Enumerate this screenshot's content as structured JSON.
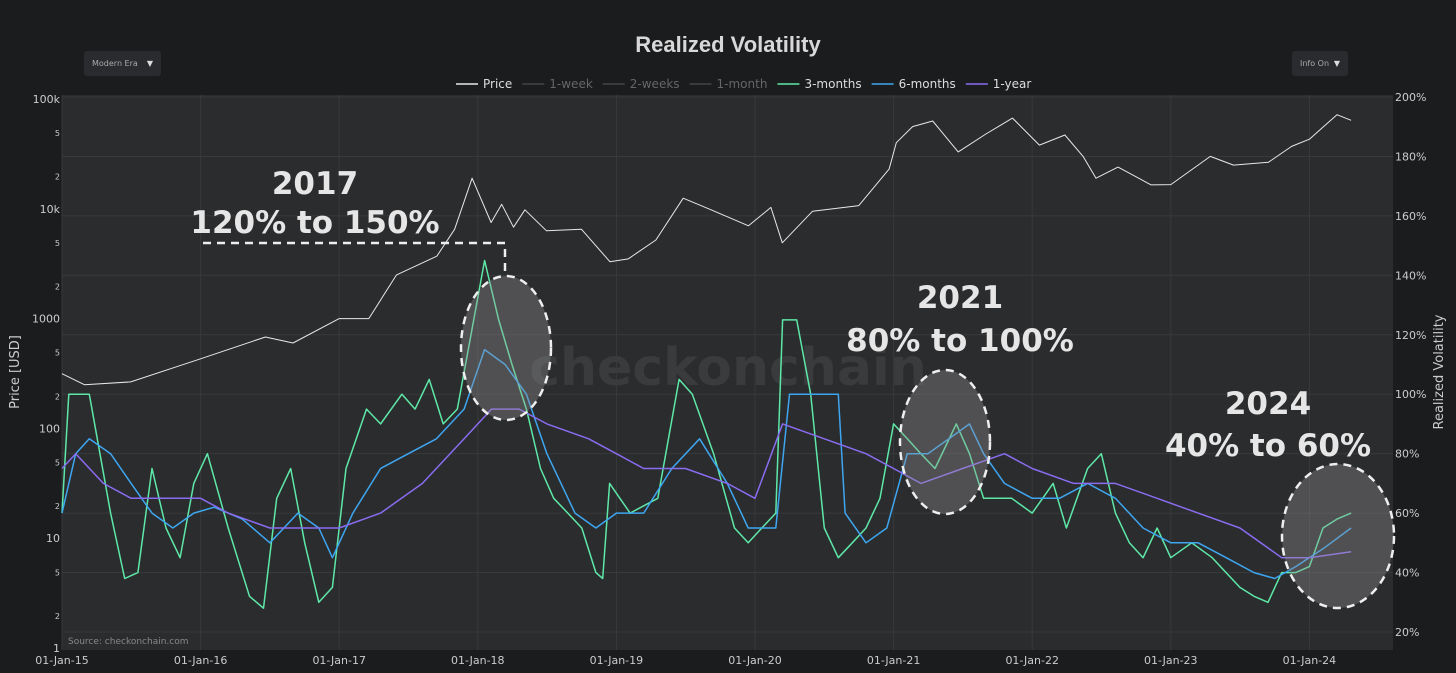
{
  "controls": {
    "era_select": "Modern Era",
    "info_select": "Info On",
    "arrow_glyph": "▼"
  },
  "chart_data": {
    "type": "line",
    "title": "Realized Volatility",
    "xlabel": "",
    "ylabel_left": "Price [USD]",
    "ylabel_right": "Realized Volatility",
    "y_left_scale": "log",
    "y_left_range": [
      1,
      100000
    ],
    "y_left_ticks": [
      "1",
      "2",
      "5",
      "10",
      "2",
      "5",
      "100",
      "2",
      "5",
      "1000",
      "2",
      "5",
      "10k",
      "2",
      "5",
      "100k"
    ],
    "y_right_range": [
      20,
      200
    ],
    "y_right_ticks": [
      "20%",
      "40%",
      "60%",
      "80%",
      "100%",
      "120%",
      "140%",
      "160%",
      "180%",
      "200%"
    ],
    "x_range": [
      "2015-01-01",
      "2024-06-01"
    ],
    "x_ticks": [
      "01-Jan-15",
      "01-Jan-16",
      "01-Jan-17",
      "01-Jan-18",
      "01-Jan-19",
      "01-Jan-20",
      "01-Jan-21",
      "01-Jan-22",
      "01-Jan-23",
      "01-Jan-24"
    ],
    "grid": true,
    "legend_position": "top",
    "legend": [
      {
        "name": "Price",
        "color": "#e8e8e8",
        "visible": true
      },
      {
        "name": "1-week",
        "color": "#555",
        "visible": false
      },
      {
        "name": "2-weeks",
        "color": "#555",
        "visible": false
      },
      {
        "name": "1-month",
        "color": "#555",
        "visible": false
      },
      {
        "name": "3-months",
        "color": "#5ee8a8",
        "visible": true
      },
      {
        "name": "6-months",
        "color": "#3ea6f0",
        "visible": true
      },
      {
        "name": "1-year",
        "color": "#8a6cf0",
        "visible": true
      }
    ],
    "series": [
      {
        "name": "Price",
        "axis": "left",
        "color": "#e8e8e8",
        "points": [
          [
            "2015-01-01",
            315
          ],
          [
            "2015-03-01",
            250
          ],
          [
            "2015-07-01",
            265
          ],
          [
            "2015-11-15",
            380
          ],
          [
            "2016-01-01",
            430
          ],
          [
            "2016-06-20",
            680
          ],
          [
            "2016-09-01",
            600
          ],
          [
            "2017-01-01",
            1000
          ],
          [
            "2017-03-20",
            1000
          ],
          [
            "2017-06-01",
            2500
          ],
          [
            "2017-09-15",
            3700
          ],
          [
            "2017-11-01",
            6500
          ],
          [
            "2017-12-17",
            19000
          ],
          [
            "2018-02-05",
            7500
          ],
          [
            "2018-03-05",
            11000
          ],
          [
            "2018-04-05",
            6800
          ],
          [
            "2018-05-05",
            9800
          ],
          [
            "2018-07-01",
            6300
          ],
          [
            "2018-10-01",
            6500
          ],
          [
            "2018-12-15",
            3300
          ],
          [
            "2019-02-01",
            3500
          ],
          [
            "2019-04-15",
            5200
          ],
          [
            "2019-06-26",
            12500
          ],
          [
            "2019-09-01",
            10000
          ],
          [
            "2019-12-15",
            7000
          ],
          [
            "2020-02-12",
            10300
          ],
          [
            "2020-03-13",
            4900
          ],
          [
            "2020-06-01",
            9500
          ],
          [
            "2020-10-01",
            10700
          ],
          [
            "2020-12-20",
            23000
          ],
          [
            "2021-01-08",
            40000
          ],
          [
            "2021-02-20",
            56000
          ],
          [
            "2021-04-14",
            63000
          ],
          [
            "2021-06-20",
            33000
          ],
          [
            "2021-09-01",
            48000
          ],
          [
            "2021-11-10",
            67000
          ],
          [
            "2022-01-20",
            38000
          ],
          [
            "2022-03-28",
            47000
          ],
          [
            "2022-05-15",
            30000
          ],
          [
            "2022-06-18",
            19000
          ],
          [
            "2022-08-15",
            24000
          ],
          [
            "2022-11-10",
            16500
          ],
          [
            "2023-01-01",
            16600
          ],
          [
            "2023-04-15",
            30000
          ],
          [
            "2023-06-15",
            25000
          ],
          [
            "2023-09-15",
            26500
          ],
          [
            "2023-11-15",
            37000
          ],
          [
            "2024-01-01",
            43000
          ],
          [
            "2024-03-14",
            72000
          ],
          [
            "2024-04-20",
            64000
          ]
        ]
      },
      {
        "name": "3-months",
        "axis": "right",
        "color": "#5ee8a8",
        "points": [
          [
            "2015-01-01",
            60
          ],
          [
            "2015-01-19",
            100
          ],
          [
            "2015-03-14",
            100
          ],
          [
            "2015-05-09",
            60
          ],
          [
            "2015-06-15",
            38
          ],
          [
            "2015-07-20",
            40
          ],
          [
            "2015-08-26",
            75
          ],
          [
            "2015-10-02",
            55
          ],
          [
            "2015-11-08",
            45
          ],
          [
            "2015-12-14",
            70
          ],
          [
            "2016-01-19",
            80
          ],
          [
            "2016-03-14",
            55
          ],
          [
            "2016-05-09",
            32
          ],
          [
            "2016-06-15",
            28
          ],
          [
            "2016-07-20",
            65
          ],
          [
            "2016-08-26",
            75
          ],
          [
            "2016-10-02",
            50
          ],
          [
            "2016-11-08",
            30
          ],
          [
            "2016-12-14",
            35
          ],
          [
            "2017-01-19",
            75
          ],
          [
            "2017-03-14",
            95
          ],
          [
            "2017-04-20",
            90
          ],
          [
            "2017-06-15",
            100
          ],
          [
            "2017-07-20",
            95
          ],
          [
            "2017-08-26",
            105
          ],
          [
            "2017-10-02",
            90
          ],
          [
            "2017-11-08",
            95
          ],
          [
            "2017-12-14",
            120
          ],
          [
            "2018-01-19",
            145
          ],
          [
            "2018-02-25",
            125
          ],
          [
            "2018-04-01",
            110
          ],
          [
            "2018-05-09",
            95
          ],
          [
            "2018-06-15",
            75
          ],
          [
            "2018-07-20",
            65
          ],
          [
            "2018-08-26",
            60
          ],
          [
            "2018-10-02",
            55
          ],
          [
            "2018-11-08",
            40
          ],
          [
            "2018-11-26",
            38
          ],
          [
            "2018-12-14",
            70
          ],
          [
            "2019-02-06",
            60
          ],
          [
            "2019-04-20",
            65
          ],
          [
            "2019-06-15",
            105
          ],
          [
            "2019-07-20",
            100
          ],
          [
            "2019-09-14",
            80
          ],
          [
            "2019-11-08",
            55
          ],
          [
            "2019-12-14",
            50
          ],
          [
            "2020-01-19",
            55
          ],
          [
            "2020-02-25",
            60
          ],
          [
            "2020-03-14",
            125
          ],
          [
            "2020-04-20",
            125
          ],
          [
            "2020-05-27",
            100
          ],
          [
            "2020-07-02",
            55
          ],
          [
            "2020-08-08",
            45
          ],
          [
            "2020-09-14",
            50
          ],
          [
            "2020-10-20",
            55
          ],
          [
            "2020-11-26",
            65
          ],
          [
            "2021-01-01",
            90
          ],
          [
            "2021-02-06",
            85
          ],
          [
            "2021-03-14",
            80
          ],
          [
            "2021-04-20",
            75
          ],
          [
            "2021-06-15",
            90
          ],
          [
            "2021-07-20",
            80
          ],
          [
            "2021-08-26",
            65
          ],
          [
            "2021-10-02",
            65
          ],
          [
            "2021-11-08",
            65
          ],
          [
            "2022-01-01",
            60
          ],
          [
            "2022-02-25",
            70
          ],
          [
            "2022-04-01",
            55
          ],
          [
            "2022-05-27",
            75
          ],
          [
            "2022-07-02",
            80
          ],
          [
            "2022-08-08",
            60
          ],
          [
            "2022-09-14",
            50
          ],
          [
            "2022-10-20",
            45
          ],
          [
            "2022-11-26",
            55
          ],
          [
            "2023-01-01",
            45
          ],
          [
            "2023-02-25",
            50
          ],
          [
            "2023-04-20",
            45
          ],
          [
            "2023-07-02",
            35
          ],
          [
            "2023-08-08",
            32
          ],
          [
            "2023-09-14",
            30
          ],
          [
            "2023-10-20",
            40
          ],
          [
            "2023-11-26",
            40
          ],
          [
            "2024-01-01",
            42
          ],
          [
            "2024-02-06",
            55
          ],
          [
            "2024-03-14",
            58
          ],
          [
            "2024-04-20",
            60
          ]
        ]
      },
      {
        "name": "6-months",
        "axis": "right",
        "color": "#3ea6f0",
        "points": [
          [
            "2015-01-01",
            60
          ],
          [
            "2015-02-06",
            80
          ],
          [
            "2015-03-14",
            85
          ],
          [
            "2015-05-09",
            80
          ],
          [
            "2015-07-02",
            70
          ],
          [
            "2015-08-26",
            60
          ],
          [
            "2015-10-20",
            55
          ],
          [
            "2015-12-14",
            60
          ],
          [
            "2016-02-06",
            62
          ],
          [
            "2016-04-20",
            58
          ],
          [
            "2016-07-02",
            50
          ],
          [
            "2016-09-14",
            60
          ],
          [
            "2016-11-08",
            55
          ],
          [
            "2016-12-14",
            45
          ],
          [
            "2017-02-06",
            60
          ],
          [
            "2017-04-20",
            75
          ],
          [
            "2017-07-02",
            80
          ],
          [
            "2017-09-14",
            85
          ],
          [
            "2017-11-26",
            95
          ],
          [
            "2018-01-19",
            115
          ],
          [
            "2018-03-14",
            110
          ],
          [
            "2018-05-09",
            100
          ],
          [
            "2018-07-02",
            80
          ],
          [
            "2018-09-14",
            60
          ],
          [
            "2018-11-08",
            55
          ],
          [
            "2019-01-01",
            60
          ],
          [
            "2019-03-14",
            60
          ],
          [
            "2019-05-27",
            75
          ],
          [
            "2019-08-08",
            85
          ],
          [
            "2019-10-20",
            70
          ],
          [
            "2019-12-14",
            55
          ],
          [
            "2020-02-25",
            55
          ],
          [
            "2020-04-01",
            100
          ],
          [
            "2020-07-02",
            100
          ],
          [
            "2020-08-08",
            100
          ],
          [
            "2020-08-26",
            60
          ],
          [
            "2020-10-20",
            50
          ],
          [
            "2020-12-14",
            55
          ],
          [
            "2021-02-06",
            80
          ],
          [
            "2021-04-01",
            80
          ],
          [
            "2021-05-27",
            85
          ],
          [
            "2021-07-20",
            90
          ],
          [
            "2021-08-26",
            80
          ],
          [
            "2021-10-20",
            70
          ],
          [
            "2022-01-01",
            65
          ],
          [
            "2022-03-14",
            65
          ],
          [
            "2022-05-27",
            70
          ],
          [
            "2022-08-08",
            65
          ],
          [
            "2022-10-20",
            55
          ],
          [
            "2023-01-01",
            50
          ],
          [
            "2023-03-14",
            50
          ],
          [
            "2023-05-27",
            45
          ],
          [
            "2023-08-08",
            40
          ],
          [
            "2023-10-02",
            38
          ],
          [
            "2023-11-26",
            42
          ],
          [
            "2024-02-06",
            48
          ],
          [
            "2024-04-20",
            55
          ]
        ]
      },
      {
        "name": "1-year",
        "axis": "right",
        "color": "#8a6cf0",
        "points": [
          [
            "2015-01-01",
            75
          ],
          [
            "2015-02-06",
            80
          ],
          [
            "2015-04-20",
            70
          ],
          [
            "2015-07-02",
            65
          ],
          [
            "2015-10-20",
            65
          ],
          [
            "2016-01-01",
            65
          ],
          [
            "2016-03-14",
            60
          ],
          [
            "2016-07-02",
            55
          ],
          [
            "2016-10-20",
            55
          ],
          [
            "2017-01-01",
            55
          ],
          [
            "2017-04-20",
            60
          ],
          [
            "2017-08-08",
            70
          ],
          [
            "2017-11-26",
            85
          ],
          [
            "2018-02-06",
            95
          ],
          [
            "2018-04-20",
            95
          ],
          [
            "2018-07-02",
            90
          ],
          [
            "2018-10-20",
            85
          ],
          [
            "2019-01-01",
            80
          ],
          [
            "2019-03-14",
            75
          ],
          [
            "2019-07-02",
            75
          ],
          [
            "2019-10-20",
            70
          ],
          [
            "2020-01-01",
            65
          ],
          [
            "2020-03-14",
            90
          ],
          [
            "2020-07-02",
            85
          ],
          [
            "2020-10-20",
            80
          ],
          [
            "2021-01-01",
            75
          ],
          [
            "2021-03-14",
            70
          ],
          [
            "2021-07-02",
            75
          ],
          [
            "2021-10-20",
            80
          ],
          [
            "2022-01-01",
            75
          ],
          [
            "2022-04-20",
            70
          ],
          [
            "2022-08-08",
            70
          ],
          [
            "2022-11-26",
            65
          ],
          [
            "2023-03-14",
            60
          ],
          [
            "2023-07-02",
            55
          ],
          [
            "2023-10-20",
            45
          ],
          [
            "2024-01-01",
            45
          ],
          [
            "2024-04-20",
            47
          ]
        ]
      }
    ],
    "annotations": [
      {
        "year": "2017",
        "range": "120% to 150%"
      },
      {
        "year": "2021",
        "range": "80% to 100%"
      },
      {
        "year": "2024",
        "range": "40% to 60%"
      }
    ],
    "watermark": "checkonchain",
    "source": "Source: checkonchain.com"
  }
}
